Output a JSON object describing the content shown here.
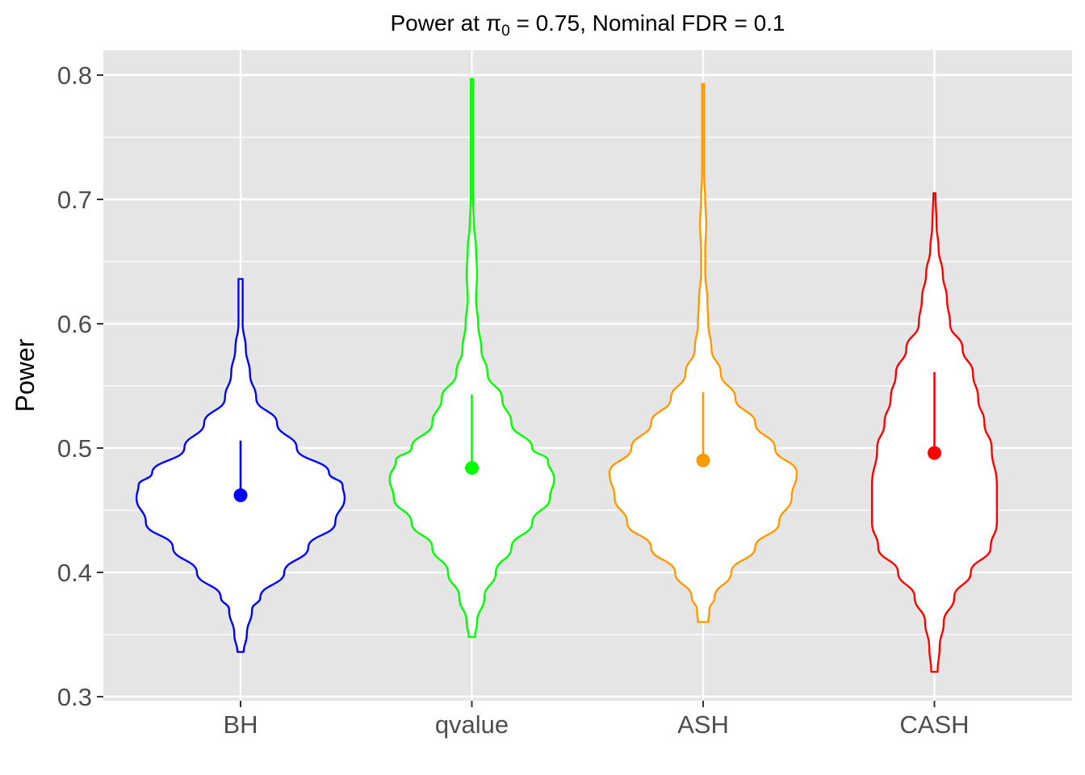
{
  "chart_data": {
    "type": "violin",
    "title_parts": {
      "prefix": "Power at ",
      "symbol": "π",
      "subscript": "0",
      "suffix": " = 0.75, Nominal FDR = 0.1"
    },
    "xlabel": "",
    "ylabel": "Power",
    "ylim": [
      0.29,
      0.82
    ],
    "yticks": [
      0.3,
      0.4,
      0.5,
      0.6,
      0.7,
      0.8
    ],
    "ytick_labels": [
      "0.3",
      "0.4",
      "0.5",
      "0.6",
      "0.7",
      "0.8"
    ],
    "grid": true,
    "categories": [
      "BH",
      "qvalue",
      "ASH",
      "CASH"
    ],
    "series": [
      {
        "name": "BH",
        "color": "#0000ff",
        "mean": 0.462,
        "upper": 0.506,
        "profile": [
          [
            0.336,
            0.03
          ],
          [
            0.35,
            0.06
          ],
          [
            0.37,
            0.11
          ],
          [
            0.38,
            0.19
          ],
          [
            0.4,
            0.42
          ],
          [
            0.42,
            0.65
          ],
          [
            0.44,
            0.91
          ],
          [
            0.46,
            1.0
          ],
          [
            0.47,
            0.98
          ],
          [
            0.48,
            0.85
          ],
          [
            0.5,
            0.54
          ],
          [
            0.52,
            0.35
          ],
          [
            0.54,
            0.15
          ],
          [
            0.56,
            0.09
          ],
          [
            0.58,
            0.05
          ],
          [
            0.6,
            0.02
          ],
          [
            0.636,
            0.02
          ]
        ]
      },
      {
        "name": "qvalue",
        "color": "#00ff00",
        "mean": 0.484,
        "upper": 0.543,
        "profile": [
          [
            0.348,
            0.03
          ],
          [
            0.36,
            0.05
          ],
          [
            0.38,
            0.12
          ],
          [
            0.4,
            0.23
          ],
          [
            0.42,
            0.38
          ],
          [
            0.44,
            0.58
          ],
          [
            0.46,
            0.75
          ],
          [
            0.475,
            0.79
          ],
          [
            0.49,
            0.73
          ],
          [
            0.5,
            0.58
          ],
          [
            0.52,
            0.38
          ],
          [
            0.54,
            0.29
          ],
          [
            0.56,
            0.15
          ],
          [
            0.58,
            0.09
          ],
          [
            0.6,
            0.06
          ],
          [
            0.62,
            0.04
          ],
          [
            0.64,
            0.05
          ],
          [
            0.66,
            0.04
          ],
          [
            0.68,
            0.02
          ],
          [
            0.7,
            0.01
          ],
          [
            0.797,
            0.01
          ]
        ]
      },
      {
        "name": "ASH",
        "color": "#ff9900",
        "mean": 0.49,
        "upper": 0.545,
        "profile": [
          [
            0.36,
            0.05
          ],
          [
            0.37,
            0.06
          ],
          [
            0.38,
            0.11
          ],
          [
            0.4,
            0.27
          ],
          [
            0.42,
            0.5
          ],
          [
            0.44,
            0.73
          ],
          [
            0.46,
            0.85
          ],
          [
            0.48,
            0.9
          ],
          [
            0.5,
            0.69
          ],
          [
            0.52,
            0.5
          ],
          [
            0.54,
            0.31
          ],
          [
            0.56,
            0.17
          ],
          [
            0.58,
            0.08
          ],
          [
            0.6,
            0.05
          ],
          [
            0.62,
            0.04
          ],
          [
            0.64,
            0.02
          ],
          [
            0.66,
            0.02
          ],
          [
            0.68,
            0.03
          ],
          [
            0.7,
            0.02
          ],
          [
            0.72,
            0.01
          ],
          [
            0.793,
            0.01
          ]
        ]
      },
      {
        "name": "CASH",
        "color": "#ff0000",
        "mean": 0.496,
        "upper": 0.561,
        "profile": [
          [
            0.32,
            0.03
          ],
          [
            0.34,
            0.05
          ],
          [
            0.36,
            0.09
          ],
          [
            0.38,
            0.19
          ],
          [
            0.4,
            0.35
          ],
          [
            0.42,
            0.54
          ],
          [
            0.44,
            0.6
          ],
          [
            0.47,
            0.6
          ],
          [
            0.5,
            0.55
          ],
          [
            0.52,
            0.48
          ],
          [
            0.54,
            0.42
          ],
          [
            0.56,
            0.37
          ],
          [
            0.58,
            0.27
          ],
          [
            0.6,
            0.15
          ],
          [
            0.62,
            0.12
          ],
          [
            0.64,
            0.08
          ],
          [
            0.66,
            0.04
          ],
          [
            0.68,
            0.02
          ],
          [
            0.705,
            0.01
          ]
        ]
      }
    ]
  }
}
